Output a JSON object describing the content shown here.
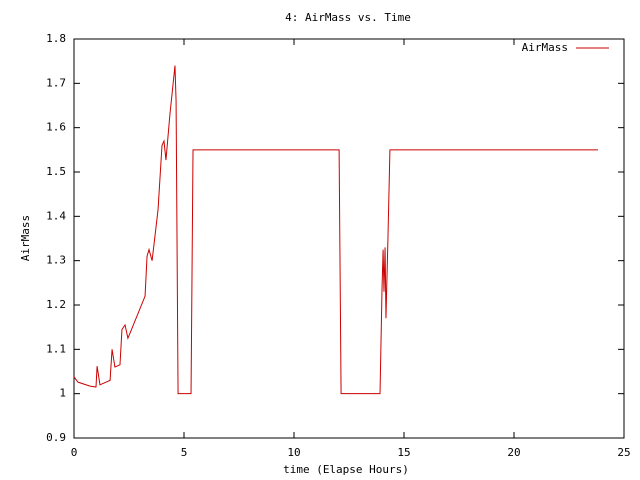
{
  "chart_data": {
    "type": "line",
    "title": "4: AirMass vs. Time",
    "xlabel": "time (Elapse Hours)",
    "ylabel": "AirMass",
    "x": [
      0,
      0.18,
      0.73,
      1.0,
      1.05,
      1.18,
      1.64,
      1.73,
      1.86,
      2.09,
      2.18,
      2.32,
      2.45,
      2.55,
      3.23,
      3.32,
      3.41,
      3.55,
      3.82,
      4.0,
      4.09,
      4.18,
      4.36,
      4.59,
      4.64,
      4.73,
      5.32,
      5.41,
      12.05,
      12.14,
      13.91,
      14.0,
      14.05,
      14.09,
      14.14,
      14.18,
      14.27,
      14.36,
      23.82
    ],
    "series": [
      {
        "name": "AirMass",
        "color": "#cc0000",
        "values": [
          1.038,
          1.026,
          1.017,
          1.015,
          1.062,
          1.02,
          1.03,
          1.1,
          1.06,
          1.065,
          1.145,
          1.155,
          1.125,
          1.137,
          1.22,
          1.31,
          1.325,
          1.3,
          1.415,
          1.56,
          1.57,
          1.527,
          1.63,
          1.74,
          1.66,
          1.0,
          1.0,
          1.55,
          1.55,
          1.0,
          1.0,
          1.234,
          1.325,
          1.23,
          1.33,
          1.17,
          1.35,
          1.55,
          1.55
        ]
      }
    ],
    "xlim": [
      0,
      25
    ],
    "xticks": [
      0,
      5,
      10,
      15,
      20,
      25
    ],
    "ylim": [
      0.9,
      1.8
    ],
    "yticks": [
      0.9,
      1,
      1.1,
      1.2,
      1.3,
      1.4,
      1.5,
      1.6,
      1.7,
      1.8
    ],
    "legend": "upper right"
  }
}
